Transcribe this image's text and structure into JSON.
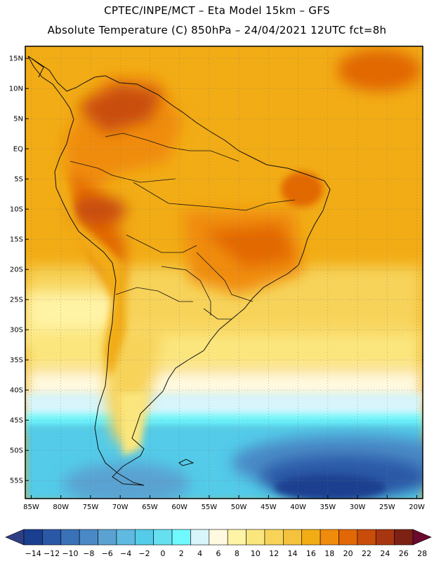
{
  "header": {
    "title_line1": "CPTEC/INPE/MCT –  Eta Model 15km – GFS",
    "title_line2": "Absolute Temperature (C) 850hPa – 24/04/2021 12UTC fct=8h"
  },
  "map": {
    "region": "South America",
    "lon_range": [
      -86,
      -19
    ],
    "lat_range": [
      -58,
      17
    ],
    "lat_ticks": [
      {
        "value": 15,
        "label": "15N"
      },
      {
        "value": 10,
        "label": "10N"
      },
      {
        "value": 5,
        "label": "5N"
      },
      {
        "value": 0,
        "label": "EQ"
      },
      {
        "value": -5,
        "label": "5S"
      },
      {
        "value": -10,
        "label": "10S"
      },
      {
        "value": -15,
        "label": "15S"
      },
      {
        "value": -20,
        "label": "20S"
      },
      {
        "value": -25,
        "label": "25S"
      },
      {
        "value": -30,
        "label": "30S"
      },
      {
        "value": -35,
        "label": "35S"
      },
      {
        "value": -40,
        "label": "40S"
      },
      {
        "value": -45,
        "label": "45S"
      },
      {
        "value": -50,
        "label": "50S"
      },
      {
        "value": -55,
        "label": "55S"
      }
    ],
    "lon_ticks": [
      {
        "value": -85,
        "label": "85W"
      },
      {
        "value": -80,
        "label": "80W"
      },
      {
        "value": -75,
        "label": "75W"
      },
      {
        "value": -70,
        "label": "70W"
      },
      {
        "value": -65,
        "label": "65W"
      },
      {
        "value": -60,
        "label": "60W"
      },
      {
        "value": -55,
        "label": "55W"
      },
      {
        "value": -50,
        "label": "50W"
      },
      {
        "value": -45,
        "label": "45W"
      },
      {
        "value": -40,
        "label": "40W"
      },
      {
        "value": -35,
        "label": "35W"
      },
      {
        "value": -30,
        "label": "30W"
      },
      {
        "value": -25,
        "label": "25W"
      },
      {
        "value": -20,
        "label": "20W"
      }
    ]
  },
  "colorbar": {
    "labels": [
      "-14",
      "-12",
      "-10",
      "-8",
      "-6",
      "-4",
      "-2",
      "0",
      "2",
      "4",
      "6",
      "8",
      "10",
      "12",
      "14",
      "16",
      "18",
      "20",
      "22",
      "24",
      "26",
      "28"
    ],
    "colors": [
      "#1a3f8f",
      "#2b58a6",
      "#3a72b8",
      "#4a89c6",
      "#5aa2d1",
      "#5fb9e0",
      "#53cbe9",
      "#66dff0",
      "#70f8ff",
      "#d7f5fb",
      "#fff9df",
      "#fff3a6",
      "#fbe67e",
      "#f7d35a",
      "#f4c23c",
      "#f2ac15",
      "#f08c0c",
      "#e26706",
      "#c94d0a",
      "#a83610",
      "#7d2114"
    ],
    "under_color": "#2f3f85",
    "over_color": "#6b0a2e"
  }
}
